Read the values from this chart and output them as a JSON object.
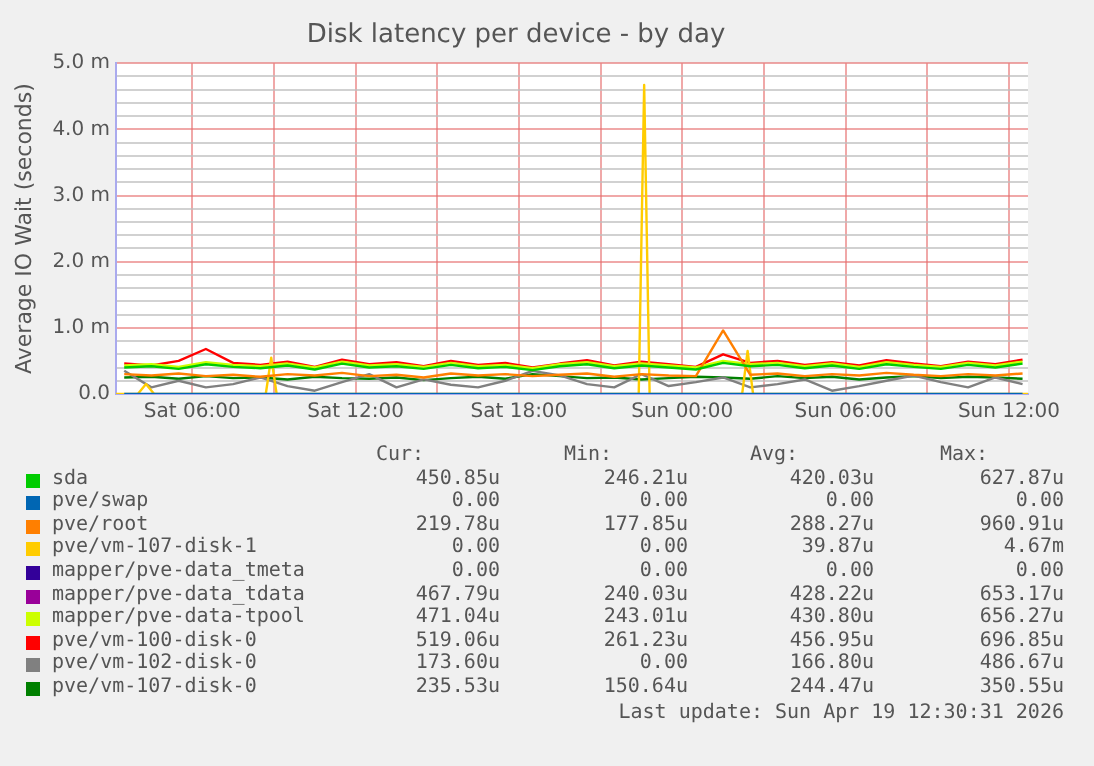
{
  "chart_data": {
    "type": "line",
    "title": "Disk latency per device - by day",
    "ylabel": "Average IO Wait (seconds)",
    "x": [
      "2026-04-18T03:30",
      "2026-04-18T04:30",
      "2026-04-18T05:30",
      "2026-04-18T06:30",
      "2026-04-18T07:30",
      "2026-04-18T08:30",
      "2026-04-18T09:30",
      "2026-04-18T10:30",
      "2026-04-18T11:30",
      "2026-04-18T12:30",
      "2026-04-18T13:30",
      "2026-04-18T14:30",
      "2026-04-18T15:30",
      "2026-04-18T16:30",
      "2026-04-18T17:30",
      "2026-04-18T18:30",
      "2026-04-18T19:30",
      "2026-04-18T20:30",
      "2026-04-18T21:30",
      "2026-04-18T22:30",
      "2026-04-18T23:30",
      "2026-04-19T00:30",
      "2026-04-19T01:30",
      "2026-04-19T02:30",
      "2026-04-19T03:30",
      "2026-04-19T04:30",
      "2026-04-19T05:30",
      "2026-04-19T06:30",
      "2026-04-19T07:30",
      "2026-04-19T08:30",
      "2026-04-19T09:30",
      "2026-04-19T10:30",
      "2026-04-19T11:30",
      "2026-04-19T12:30"
    ],
    "xlim": [
      "2026-04-18T03:12",
      "2026-04-19T12:42"
    ],
    "xticks": [
      {
        "value": "2026-04-18T06:00",
        "label": "Sat 06:00"
      },
      {
        "value": "2026-04-18T09:00",
        "label": null
      },
      {
        "value": "2026-04-18T12:00",
        "label": "Sat 12:00"
      },
      {
        "value": "2026-04-18T15:00",
        "label": null
      },
      {
        "value": "2026-04-18T18:00",
        "label": "Sat 18:00"
      },
      {
        "value": "2026-04-18T21:00",
        "label": null
      },
      {
        "value": "2026-04-19T00:00",
        "label": "Sun 00:00"
      },
      {
        "value": "2026-04-19T03:00",
        "label": null
      },
      {
        "value": "2026-04-19T06:00",
        "label": "Sun 06:00"
      },
      {
        "value": "2026-04-19T09:00",
        "label": null
      },
      {
        "value": "2026-04-19T12:00",
        "label": "Sun 12:00"
      }
    ],
    "ylim": [
      0,
      5
    ],
    "yticks": [
      {
        "value": 0,
        "label": "0.0"
      },
      {
        "value": 0.2,
        "label": null
      },
      {
        "value": 0.4,
        "label": null
      },
      {
        "value": 0.6,
        "label": null
      },
      {
        "value": 0.8,
        "label": null
      },
      {
        "value": 1,
        "label": "1.0 m"
      },
      {
        "value": 1.2,
        "label": null
      },
      {
        "value": 1.4,
        "label": null
      },
      {
        "value": 1.6,
        "label": null
      },
      {
        "value": 1.8,
        "label": null
      },
      {
        "value": 2,
        "label": "2.0 m"
      },
      {
        "value": 2.2,
        "label": null
      },
      {
        "value": 2.4,
        "label": null
      },
      {
        "value": 2.6,
        "label": null
      },
      {
        "value": 2.8,
        "label": null
      },
      {
        "value": 3,
        "label": "3.0 m"
      },
      {
        "value": 3.2,
        "label": null
      },
      {
        "value": 3.4,
        "label": null
      },
      {
        "value": 3.6,
        "label": null
      },
      {
        "value": 3.8,
        "label": null
      },
      {
        "value": 4,
        "label": "4.0 m"
      },
      {
        "value": 4.2,
        "label": null
      },
      {
        "value": 4.4,
        "label": null
      },
      {
        "value": 4.6,
        "label": null
      },
      {
        "value": 4.8,
        "label": null
      },
      {
        "value": 5,
        "label": "5.0 m"
      }
    ],
    "grid": true,
    "legend": "bottom",
    "series": [
      {
        "name": "sda",
        "color": "#00cc00",
        "values": [
          0.4,
          0.42,
          0.38,
          0.45,
          0.41,
          0.39,
          0.43,
          0.37,
          0.46,
          0.4,
          0.42,
          0.38,
          0.44,
          0.39,
          0.41,
          0.36,
          0.42,
          0.45,
          0.39,
          0.43,
          0.4,
          0.37,
          0.47,
          0.42,
          0.44,
          0.39,
          0.43,
          0.38,
          0.45,
          0.41,
          0.38,
          0.44,
          0.4,
          0.46
        ]
      },
      {
        "name": "pve/swap",
        "color": "#0066b3",
        "values": [
          0,
          0,
          0,
          0,
          0,
          0,
          0,
          0,
          0,
          0,
          0,
          0,
          0,
          0,
          0,
          0,
          0,
          0,
          0,
          0,
          0,
          0,
          0,
          0,
          0,
          0,
          0,
          0,
          0,
          0,
          0,
          0,
          0,
          0
        ]
      },
      {
        "name": "pve/root",
        "color": "#ff7f00",
        "values": [
          0.3,
          0.28,
          0.31,
          0.27,
          0.29,
          0.26,
          0.3,
          0.28,
          0.32,
          0.27,
          0.29,
          0.25,
          0.31,
          0.28,
          0.3,
          0.27,
          0.29,
          0.31,
          0.26,
          0.3,
          0.28,
          0.27,
          0.96,
          0.29,
          0.31,
          0.27,
          0.3,
          0.28,
          0.32,
          0.29,
          0.27,
          0.3,
          0.28,
          0.31
        ]
      },
      {
        "name": "pve/vm-107-disk-1",
        "color": "#ffcc00",
        "x": [
          "2026-04-18T03:12",
          "2026-04-18T04:00",
          "2026-04-18T04:18",
          "2026-04-18T04:36",
          "2026-04-18T08:42",
          "2026-04-18T08:54",
          "2026-04-18T09:06",
          "2026-04-18T22:24",
          "2026-04-18T22:36",
          "2026-04-18T22:48",
          "2026-04-18T23:00",
          "2026-04-19T02:12",
          "2026-04-19T02:24",
          "2026-04-19T02:36",
          "2026-04-19T12:42"
        ],
        "values": [
          0,
          0,
          0.15,
          0,
          0,
          0.55,
          0,
          0,
          4.67,
          0,
          0,
          0,
          0.65,
          0,
          0
        ]
      },
      {
        "name": "mapper/pve-data_tmeta",
        "color": "#330099",
        "values": [
          null,
          null,
          null,
          null,
          null,
          null,
          null,
          null,
          null,
          null,
          null,
          null,
          null,
          null,
          null,
          null,
          null,
          null,
          null,
          null,
          null,
          null,
          null,
          null,
          null,
          null,
          null,
          null,
          null,
          null,
          null,
          null,
          null,
          null
        ]
      },
      {
        "name": "mapper/pve-data_tdata",
        "color": "#990099",
        "values": [
          null,
          null,
          null,
          null,
          null,
          null,
          null,
          null,
          null,
          null,
          null,
          null,
          null,
          null,
          null,
          null,
          null,
          null,
          null,
          null,
          null,
          null,
          null,
          null,
          null,
          null,
          null,
          null,
          null,
          null,
          null,
          null,
          null,
          null
        ]
      },
      {
        "name": "mapper/pve-data-tpool",
        "color": "#ccff00",
        "values": [
          0.43,
          0.45,
          0.41,
          0.48,
          0.44,
          0.42,
          0.46,
          0.4,
          0.49,
          0.43,
          0.45,
          0.41,
          0.47,
          0.42,
          0.44,
          0.39,
          0.45,
          0.48,
          0.42,
          0.46,
          0.43,
          0.4,
          0.5,
          0.45,
          0.47,
          0.42,
          0.46,
          0.41,
          0.48,
          0.44,
          0.41,
          0.47,
          0.43,
          0.49
        ]
      },
      {
        "name": "pve/vm-100-disk-0",
        "color": "#ff0000",
        "values": [
          0.46,
          0.43,
          0.5,
          0.68,
          0.47,
          0.44,
          0.49,
          0.41,
          0.52,
          0.45,
          0.48,
          0.42,
          0.5,
          0.44,
          0.47,
          0.4,
          0.46,
          0.51,
          0.43,
          0.49,
          0.45,
          0.41,
          0.6,
          0.47,
          0.5,
          0.44,
          0.48,
          0.43,
          0.51,
          0.46,
          0.42,
          0.49,
          0.45,
          0.52
        ]
      },
      {
        "name": "pve/vm-102-disk-0",
        "color": "#808080",
        "values": [
          0.35,
          0.1,
          0.2,
          0.1,
          0.15,
          0.25,
          0.12,
          0.05,
          0.18,
          0.3,
          0.1,
          0.22,
          0.14,
          0.1,
          0.2,
          0.35,
          0.28,
          0.15,
          0.1,
          0.3,
          0.12,
          0.18,
          0.25,
          0.1,
          0.15,
          0.22,
          0.05,
          0.12,
          0.2,
          0.28,
          0.18,
          0.1,
          0.25,
          0.15
        ]
      },
      {
        "name": "pve/vm-107-disk-0",
        "color": "#008000",
        "values": [
          0.25,
          0.26,
          0.23,
          0.27,
          0.24,
          0.25,
          0.22,
          0.26,
          0.24,
          0.23,
          0.25,
          0.21,
          0.24,
          0.26,
          0.23,
          0.3,
          0.27,
          0.24,
          0.25,
          0.22,
          0.24,
          0.26,
          0.25,
          0.23,
          0.27,
          0.24,
          0.26,
          0.22,
          0.25,
          0.27,
          0.24,
          0.26,
          0.25,
          0.23
        ]
      }
    ],
    "annotations": [
      "Cur:",
      "Min:",
      "Avg:",
      "Max:",
      "450.85u",
      "246.21u",
      "420.03u",
      "627.87u",
      "0.00",
      "0.00",
      "0.00",
      "0.00",
      "219.78u",
      "177.85u",
      "288.27u",
      "960.91u",
      "0.00",
      "0.00",
      "39.87u",
      "4.67m",
      "0.00",
      "0.00",
      "0.00",
      "0.00",
      "467.79u",
      "240.03u",
      "428.22u",
      "653.17u",
      "471.04u",
      "243.01u",
      "430.80u",
      "656.27u",
      "519.06u",
      "261.23u",
      "456.95u",
      "696.85u",
      "173.60u",
      "0.00",
      "166.80u",
      "486.67u",
      "235.53u",
      "150.64u",
      "244.47u",
      "350.55u",
      "Last update: Sun Apr 19 12:30:31 2026"
    ]
  }
}
